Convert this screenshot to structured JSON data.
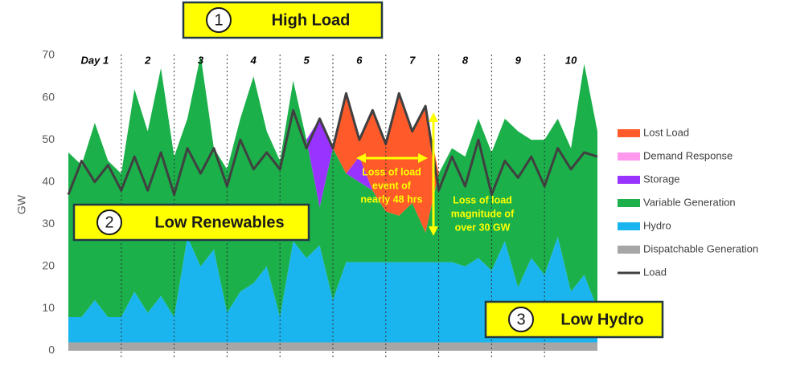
{
  "chart_data": {
    "type": "stacked_area",
    "y_label": "GW",
    "ylim": [
      0,
      70
    ],
    "yticks": [
      0,
      10,
      20,
      30,
      40,
      50,
      60,
      70
    ],
    "xlim": [
      0,
      10
    ],
    "day_labels": [
      "Day 1",
      "2",
      "3",
      "4",
      "5",
      "6",
      "7",
      "8",
      "9",
      "10"
    ],
    "x": [
      0,
      0.25,
      0.5,
      0.75,
      1,
      1.25,
      1.5,
      1.75,
      2,
      2.25,
      2.5,
      2.75,
      3,
      3.25,
      3.5,
      3.75,
      4,
      4.25,
      4.5,
      4.75,
      5,
      5.25,
      5.5,
      5.75,
      6,
      6.25,
      6.5,
      6.75,
      7,
      7.25,
      7.5,
      7.75,
      8,
      8.25,
      8.5,
      8.75,
      9,
      9.25,
      9.5,
      9.75,
      10
    ],
    "series": [
      {
        "name": "Dispatchable Generation",
        "color": "#a6a6a6",
        "values": [
          2,
          2,
          2,
          2,
          2,
          2,
          2,
          2,
          2,
          2,
          2,
          2,
          2,
          2,
          2,
          2,
          2,
          2,
          2,
          2,
          2,
          2,
          2,
          2,
          2,
          2,
          2,
          2,
          2,
          2,
          2,
          2,
          2,
          2,
          2,
          2,
          2,
          2,
          2,
          2,
          2
        ]
      },
      {
        "name": "Hydro",
        "color": "#1ab5ef",
        "values": [
          6,
          6,
          10,
          6,
          6,
          12,
          7,
          11,
          6,
          25,
          18,
          22,
          7,
          12,
          14,
          18,
          6,
          24,
          20,
          23,
          10,
          19,
          19,
          19,
          19,
          19,
          19,
          19,
          19,
          19,
          18,
          20,
          17,
          24,
          13,
          20,
          16,
          25,
          12,
          16,
          8
        ]
      },
      {
        "name": "Variable Generation",
        "color": "#1bb04a",
        "values": [
          39,
          36,
          42,
          37,
          34,
          48,
          43,
          54,
          38,
          28,
          50,
          24,
          34,
          41,
          49,
          32,
          37,
          38,
          28,
          9,
          36,
          21,
          19,
          17,
          12,
          11,
          14,
          7,
          21,
          27,
          26,
          33,
          28,
          29,
          37,
          28,
          32,
          28,
          34,
          50,
          42
        ]
      },
      {
        "name": "Storage",
        "color": "#9933ff",
        "values": [
          0,
          0,
          0,
          0,
          0,
          0,
          0,
          0,
          0,
          0,
          0,
          0,
          0,
          0,
          0,
          0,
          0,
          0,
          0,
          21,
          0,
          0,
          6,
          0,
          0,
          0,
          0,
          0,
          0,
          0,
          0,
          0,
          0,
          0,
          0,
          0,
          0,
          0,
          0,
          0,
          0
        ]
      },
      {
        "name": "Demand Response",
        "color": "#ff99ee",
        "values": [
          0,
          0,
          0,
          0,
          0,
          0,
          0,
          0,
          0,
          0,
          0,
          0,
          0,
          0,
          0,
          0,
          0,
          0,
          0,
          0,
          0,
          0,
          0,
          0,
          0,
          0,
          0,
          0,
          0,
          0,
          0,
          0,
          0,
          0,
          0,
          0,
          0,
          0,
          0,
          0,
          0
        ]
      },
      {
        "name": "Lost Load",
        "color": "#ff5a2a",
        "values": [
          0,
          0,
          0,
          0,
          0,
          0,
          0,
          0,
          0,
          0,
          0,
          0,
          0,
          0,
          0,
          0,
          0,
          0,
          0,
          0,
          0,
          19,
          4,
          19,
          16,
          29,
          17,
          30,
          0,
          0,
          0,
          0,
          0,
          0,
          0,
          0,
          0,
          0,
          0,
          0,
          0
        ]
      }
    ],
    "load": {
      "name": "Load",
      "color": "#404040",
      "values": [
        37,
        45,
        40,
        44,
        38,
        46,
        38,
        47,
        37,
        48,
        42,
        48,
        39,
        50,
        43,
        47,
        43,
        57,
        48,
        55,
        48,
        61,
        50,
        57,
        49,
        61,
        52,
        58,
        38,
        46,
        39,
        50,
        37,
        45,
        41,
        46,
        39,
        48,
        43,
        47,
        46
      ]
    },
    "callouts": [
      {
        "number": "1",
        "label": "High Load"
      },
      {
        "number": "2",
        "label": "Low Renewables"
      },
      {
        "number": "3",
        "label": "Low Hydro"
      }
    ],
    "notes": [
      [
        "Loss of load",
        "event of",
        "nearly 48 hrs"
      ],
      [
        "Loss of load",
        "magnitude of",
        "over 30 GW"
      ]
    ]
  }
}
